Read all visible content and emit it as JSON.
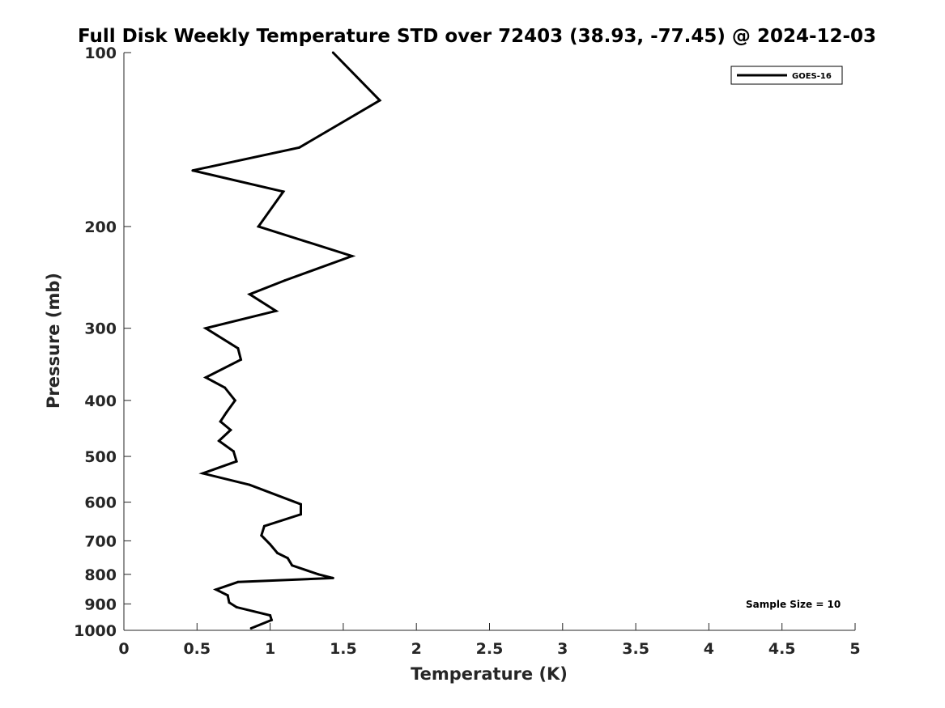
{
  "chart_data": {
    "type": "line",
    "title": "Full Disk Weekly Temperature STD over 72403 (38.93, -77.45) @ 2024-12-03",
    "xlabel": "Temperature (K)",
    "ylabel": "Pressure (mb)",
    "xlim": [
      0,
      5
    ],
    "ylim": [
      100,
      1000
    ],
    "yscale": "log",
    "y_reversed": true,
    "grid": false,
    "legend_position": "top-right",
    "x_ticks": [
      "0",
      "0.5",
      "1",
      "1.5",
      "2",
      "2.5",
      "3",
      "3.5",
      "4",
      "4.5",
      "5"
    ],
    "y_ticks": [
      "100",
      "200",
      "300",
      "400",
      "500",
      "600",
      "700",
      "800",
      "900",
      "1000"
    ],
    "series": [
      {
        "name": "GOES-16",
        "color": "#000000",
        "x": [
          1.43,
          1.75,
          1.2,
          0.47,
          1.09,
          0.92,
          1.56,
          1.1,
          0.86,
          1.04,
          0.56,
          0.78,
          0.8,
          0.56,
          0.69,
          0.76,
          0.7,
          0.66,
          0.73,
          0.65,
          0.75,
          0.77,
          0.54,
          0.86,
          1.21,
          1.21,
          0.96,
          0.94,
          1.0,
          1.05,
          1.12,
          1.15,
          1.33,
          1.43,
          0.78,
          0.63,
          0.71,
          0.72,
          0.77,
          1.0,
          1.01,
          0.87
        ],
        "y": [
          100,
          121,
          146,
          160,
          174,
          200,
          225,
          248,
          262,
          280,
          300,
          325,
          340,
          365,
          380,
          400,
          420,
          435,
          450,
          470,
          490,
          510,
          535,
          560,
          605,
          630,
          660,
          685,
          710,
          735,
          750,
          772,
          800,
          812,
          825,
          850,
          870,
          895,
          912,
          942,
          960,
          992
        ]
      }
    ],
    "annotations": [
      "Sample Size = 10"
    ]
  }
}
